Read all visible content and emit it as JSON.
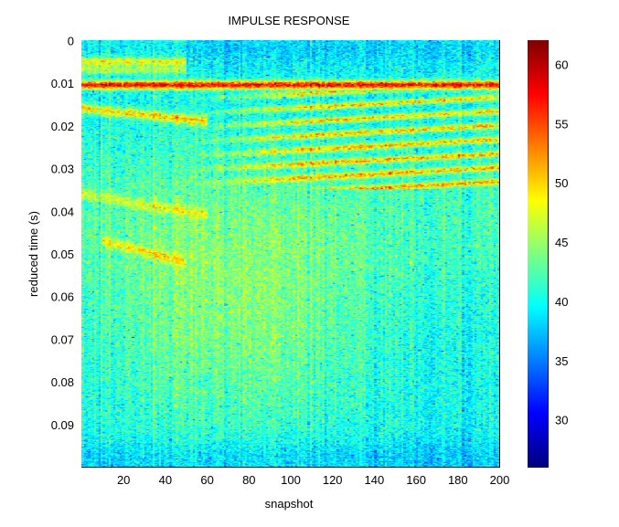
{
  "chart_data": {
    "type": "heatmap",
    "title": "IMPULSE RESPONSE",
    "xlabel": "snapshot",
    "ylabel": "reduced time (s)",
    "xlim": [
      0,
      200
    ],
    "ylim": [
      0,
      0.1
    ],
    "x_ticks": [
      20,
      40,
      60,
      80,
      100,
      120,
      140,
      160,
      180,
      200
    ],
    "y_ticks": [
      0,
      0.01,
      0.02,
      0.03,
      0.04,
      0.05,
      0.06,
      0.07,
      0.08,
      0.09
    ],
    "y_tick_labels": [
      "0",
      "0.01",
      "0.02",
      "0.03",
      "0.04",
      "0.05",
      "0.06",
      "0.07",
      "0.08",
      "0.09"
    ],
    "colorbar": {
      "range": [
        26,
        62
      ],
      "ticks": [
        30,
        35,
        40,
        45,
        50,
        55,
        60
      ],
      "colormap": "jet"
    },
    "features": [
      {
        "description": "strong direct arrival",
        "time_s": 0.0105,
        "snapshots": [
          0,
          200
        ],
        "level": 61
      },
      {
        "description": "early arrival",
        "time_s": 0.005,
        "snapshots": [
          0,
          50
        ],
        "level": 51
      },
      {
        "description": "early arrival",
        "time_s": 0.007,
        "snapshots": [
          0,
          50
        ],
        "level": 48
      },
      {
        "description": "descending arrival",
        "time_s_start": 0.016,
        "time_s_end": 0.019,
        "snapshots": [
          0,
          60
        ],
        "level": 55
      },
      {
        "description": "descending arrival",
        "time_s_start": 0.036,
        "time_s_end": 0.041,
        "snapshots": [
          0,
          60
        ],
        "level": 48
      },
      {
        "description": "descending arrival",
        "time_s_start": 0.047,
        "time_s_end": 0.052,
        "snapshots": [
          10,
          50
        ],
        "level": 50
      },
      {
        "description": "multipath arrivals",
        "time_s_range": [
          0.012,
          0.035
        ],
        "snapshots": [
          50,
          200
        ],
        "level": 54
      }
    ]
  },
  "colors": {
    "background": "#ffffff",
    "axis": "#000000"
  }
}
